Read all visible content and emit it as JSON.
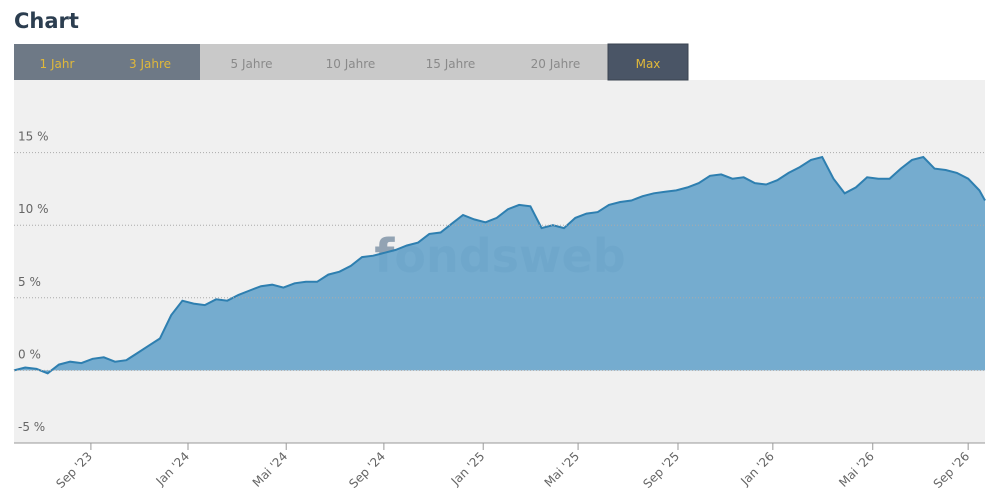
{
  "range_tabs": [
    {
      "label": "1 Jahr",
      "state": "enabled"
    },
    {
      "label": "3 Jahre",
      "state": "enabled"
    },
    {
      "label": "5 Jahre",
      "state": "disabled"
    },
    {
      "label": "10 Jahre",
      "state": "disabled"
    },
    {
      "label": "15 Jahre",
      "state": "disabled"
    },
    {
      "label": "20 Jahre",
      "state": "disabled"
    },
    {
      "label": "Max",
      "state": "active"
    }
  ],
  "watermark": "fondsweb",
  "chart_data": {
    "type": "area",
    "title": "Chart",
    "color": "#2e7fb0",
    "fill": "#6ea8cc",
    "grid": true,
    "x": [
      0,
      2,
      4,
      6,
      8,
      10,
      12,
      14,
      16,
      18,
      20,
      22,
      24,
      26,
      28,
      30,
      32,
      34,
      36,
      38,
      40,
      42,
      44,
      46,
      48,
      50,
      52,
      54,
      56,
      58,
      60,
      62,
      64,
      66,
      68,
      70,
      72,
      74,
      76,
      78,
      80,
      82,
      84,
      86,
      88,
      90,
      92,
      94,
      96,
      98,
      100,
      102,
      104,
      106,
      108,
      110,
      112,
      114,
      116,
      118,
      120,
      122,
      124,
      126,
      128,
      130,
      132,
      134,
      136,
      138,
      140,
      142,
      144,
      146,
      148,
      150,
      152,
      154,
      156,
      158,
      160,
      162,
      164,
      166,
      168,
      170,
      172,
      173
    ],
    "values": [
      0.0,
      0.2,
      0.1,
      -0.2,
      0.4,
      0.6,
      0.5,
      0.8,
      0.9,
      0.6,
      0.7,
      1.2,
      1.7,
      2.2,
      3.8,
      4.8,
      4.6,
      4.5,
      4.9,
      4.8,
      5.2,
      5.5,
      5.8,
      5.9,
      5.7,
      6.0,
      6.1,
      6.1,
      6.6,
      6.8,
      7.2,
      7.8,
      7.9,
      8.1,
      8.3,
      8.6,
      8.8,
      9.4,
      9.5,
      10.1,
      10.7,
      10.4,
      10.2,
      10.5,
      11.1,
      11.4,
      11.3,
      9.8,
      10.0,
      9.8,
      10.5,
      10.8,
      10.9,
      11.4,
      11.6,
      11.7,
      12.0,
      12.2,
      12.3,
      12.4,
      12.6,
      12.9,
      13.4,
      13.5,
      13.2,
      13.3,
      12.9,
      12.8,
      13.1,
      13.6,
      14.0,
      14.5,
      14.7,
      13.2,
      12.2,
      12.6,
      13.3,
      13.2,
      13.2,
      13.9,
      14.5,
      14.7,
      13.9,
      13.8,
      13.6,
      13.2,
      12.4,
      11.7
    ],
    "xlim": [
      0,
      173
    ],
    "xticks": [
      {
        "value": 13.7,
        "label": "Sep '23"
      },
      {
        "value": 31,
        "label": "Jan '24"
      },
      {
        "value": 48.5,
        "label": "Mai '24"
      },
      {
        "value": 65.9,
        "label": "Sep '24"
      },
      {
        "value": 83.6,
        "label": "Jan '25"
      },
      {
        "value": 100.5,
        "label": "Mai '25"
      },
      {
        "value": 118.3,
        "label": "Sep '25"
      },
      {
        "value": 135.2,
        "label": "Jan '26"
      },
      {
        "value": 153,
        "label": "Mai '26"
      },
      {
        "value": 170,
        "label": "Sep '26"
      }
    ],
    "ylim": [
      -5,
      20
    ],
    "yticks": [
      {
        "value": -5,
        "label": "-5 %"
      },
      {
        "value": 0,
        "label": "0 %"
      },
      {
        "value": 5,
        "label": "5 %"
      },
      {
        "value": 10,
        "label": "10 %"
      },
      {
        "value": 15,
        "label": "15 %"
      }
    ]
  }
}
